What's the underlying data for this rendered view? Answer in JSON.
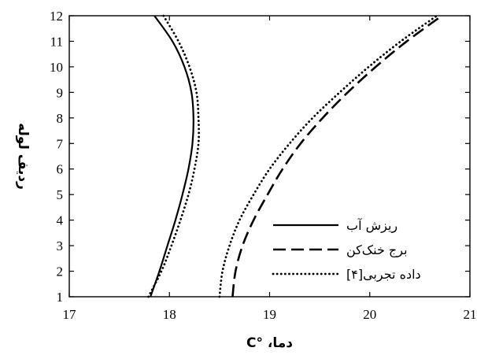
{
  "chart_data": {
    "type": "line",
    "xlabel": "دما، °C",
    "ylabel": "ردیف لوله",
    "xlim": [
      17,
      21
    ],
    "ylim": [
      1,
      12
    ],
    "xticks": [
      17,
      18,
      19,
      20,
      21
    ],
    "yticks": [
      1,
      2,
      3,
      4,
      5,
      6,
      7,
      8,
      9,
      10,
      11,
      12
    ],
    "grid": false,
    "legend_position": "bottom-right",
    "series": [
      {
        "name": "ریزش آب",
        "style": "solid",
        "color": "#000000",
        "points": [
          {
            "x": 17.81,
            "y": 1
          },
          {
            "x": 17.9,
            "y": 2
          },
          {
            "x": 17.98,
            "y": 3
          },
          {
            "x": 18.06,
            "y": 4
          },
          {
            "x": 18.13,
            "y": 5
          },
          {
            "x": 18.19,
            "y": 6
          },
          {
            "x": 18.23,
            "y": 7
          },
          {
            "x": 18.24,
            "y": 8
          },
          {
            "x": 18.22,
            "y": 9
          },
          {
            "x": 18.15,
            "y": 10
          },
          {
            "x": 18.03,
            "y": 11
          },
          {
            "x": 17.85,
            "y": 12
          }
        ]
      },
      {
        "name": "برج خنک‌کن",
        "style": "dashed",
        "color": "#000000",
        "points": [
          {
            "x": 18.63,
            "y": 1
          },
          {
            "x": 18.66,
            "y": 2
          },
          {
            "x": 18.73,
            "y": 3
          },
          {
            "x": 18.84,
            "y": 4
          },
          {
            "x": 18.98,
            "y": 5
          },
          {
            "x": 19.13,
            "y": 6
          },
          {
            "x": 19.31,
            "y": 7
          },
          {
            "x": 19.53,
            "y": 8
          },
          {
            "x": 19.78,
            "y": 9
          },
          {
            "x": 20.06,
            "y": 10
          },
          {
            "x": 20.37,
            "y": 11
          },
          {
            "x": 20.72,
            "y": 12
          }
        ]
      },
      {
        "name": "داده تجربی[۴]",
        "style": "dotted",
        "color": "#000000",
        "points": [
          {
            "x": 18.5,
            "y": 1
          },
          {
            "x": 18.53,
            "y": 2
          },
          {
            "x": 18.6,
            "y": 3
          },
          {
            "x": 18.7,
            "y": 4
          },
          {
            "x": 18.84,
            "y": 5
          },
          {
            "x": 19.0,
            "y": 6
          },
          {
            "x": 19.2,
            "y": 7
          },
          {
            "x": 19.43,
            "y": 8
          },
          {
            "x": 19.7,
            "y": 9
          },
          {
            "x": 19.99,
            "y": 10
          },
          {
            "x": 20.31,
            "y": 11
          },
          {
            "x": 20.67,
            "y": 12
          }
        ]
      },
      {
        "name": "",
        "style": "dotted",
        "color": "#000000",
        "points": [
          {
            "x": 17.79,
            "y": 1
          },
          {
            "x": 17.92,
            "y": 2
          },
          {
            "x": 18.02,
            "y": 3
          },
          {
            "x": 18.11,
            "y": 4
          },
          {
            "x": 18.19,
            "y": 5
          },
          {
            "x": 18.25,
            "y": 6
          },
          {
            "x": 18.29,
            "y": 7
          },
          {
            "x": 18.29,
            "y": 8
          },
          {
            "x": 18.27,
            "y": 9
          },
          {
            "x": 18.2,
            "y": 10
          },
          {
            "x": 18.09,
            "y": 11
          },
          {
            "x": 17.94,
            "y": 12
          }
        ]
      }
    ]
  }
}
